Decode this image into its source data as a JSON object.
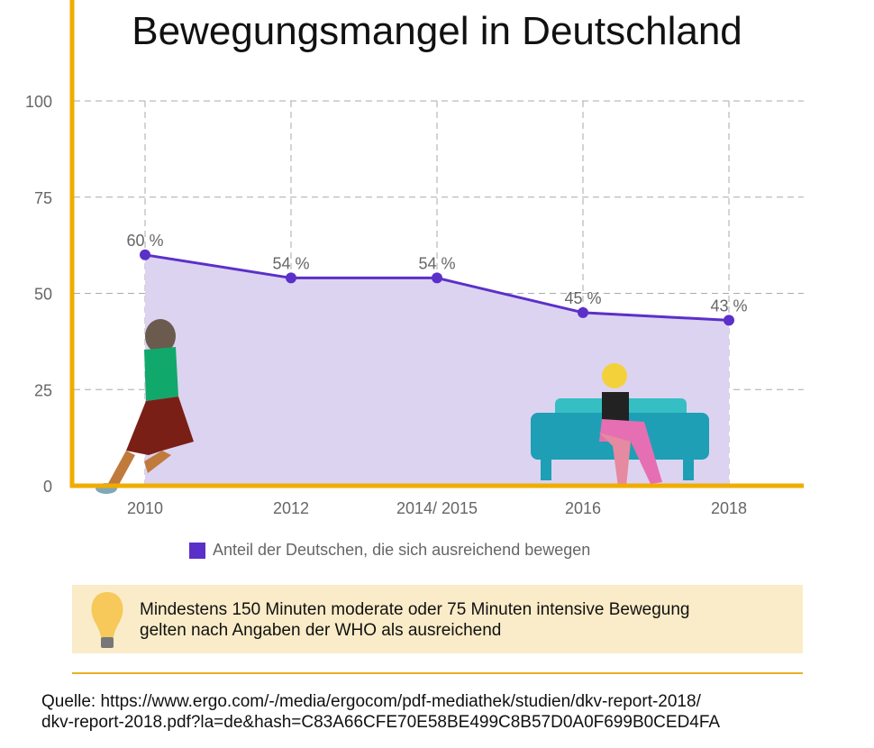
{
  "title": "Bewegungsmangel in Deutschland",
  "colors": {
    "axis": "#f0ac00",
    "line": "#5b30c9",
    "area": "#dcd3f0",
    "grid": "#aaaaaa",
    "note_bg": "#faecc8"
  },
  "chart_data": {
    "type": "area",
    "title": "Bewegungsmangel in Deutschland",
    "categories": [
      "2010",
      "2012",
      "2014/ 2015",
      "2016",
      "2018"
    ],
    "series": [
      {
        "name": "Anteil der Deutschen, die sich ausreichend bewegen",
        "values": [
          60,
          54,
          54,
          45,
          43
        ]
      }
    ],
    "data_labels": [
      "60 %",
      "54 %",
      "54 %",
      "45 %",
      "43 %"
    ],
    "yticks": [
      "0",
      "25",
      "50",
      "75",
      "100"
    ],
    "ylim": [
      0,
      100
    ],
    "grid": true,
    "legend": "bottom"
  },
  "legend": {
    "label": "Anteil der Deutschen, die sich ausreichend bewegen"
  },
  "note": {
    "icon": "lightbulb-icon",
    "text_line1": "Mindestens 150 Minuten moderate oder 75 Minuten intensive Bewegung",
    "text_line2": "gelten nach Angaben der WHO als ausreichend"
  },
  "source": {
    "line1": "Quelle: https://www.ergo.com/-/media/ergocom/pdf-mediathek/studien/dkv-report-2018/",
    "line2": "dkv-report-2018.pdf?la=de&hash=C83A66CFE70E58BE499C8B57D0A0F699B0CED4FA"
  }
}
